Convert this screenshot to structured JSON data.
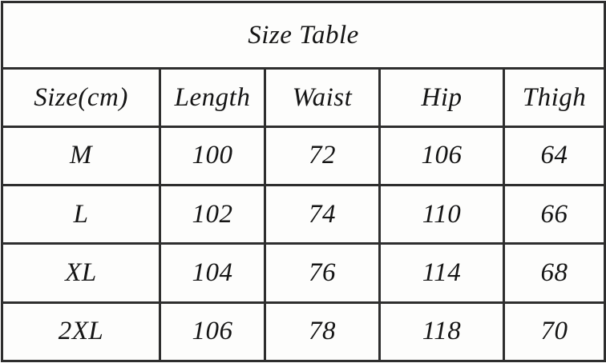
{
  "size_table": {
    "title": "Size Table",
    "headers": [
      "Size(cm)",
      "Length",
      "Waist",
      "Hip",
      "Thigh"
    ],
    "rows": [
      [
        "M",
        "100",
        "72",
        "106",
        "64"
      ],
      [
        "L",
        "102",
        "74",
        "110",
        "66"
      ],
      [
        "XL",
        "104",
        "76",
        "114",
        "68"
      ],
      [
        "2XL",
        "106",
        "78",
        "118",
        "70"
      ]
    ],
    "colors": {
      "border": "#2e2e2e",
      "text": "#151515",
      "background": "#fdfdfc"
    }
  }
}
